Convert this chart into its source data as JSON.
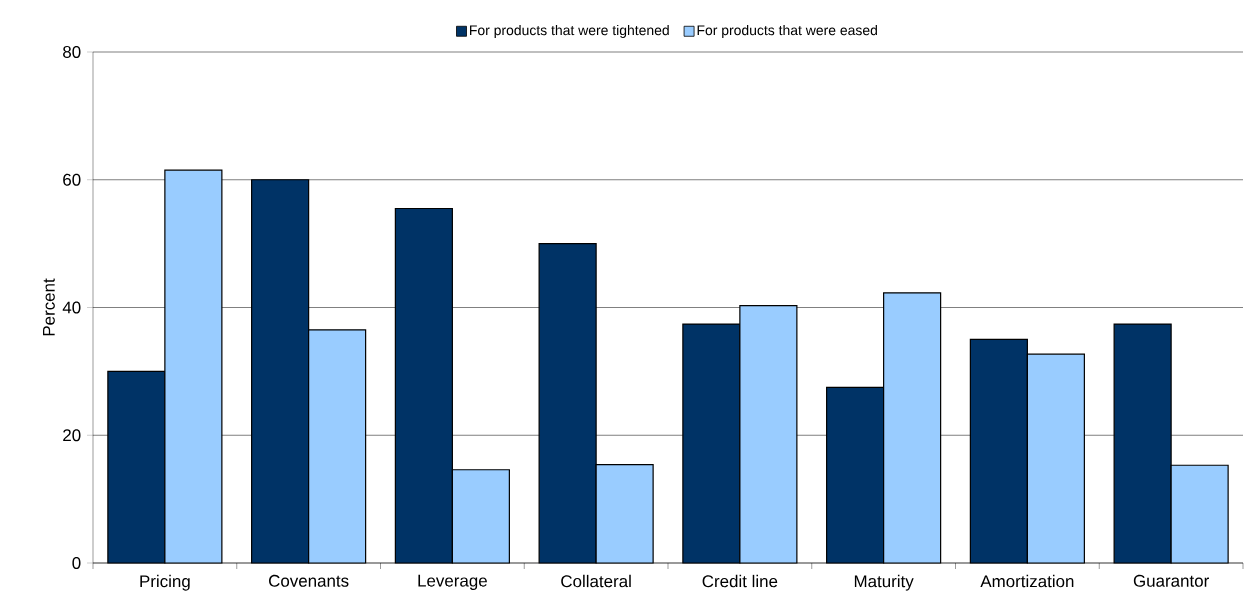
{
  "chart_data": {
    "type": "bar",
    "ylabel": "Percent",
    "categories": [
      "Pricing",
      "Covenants",
      "Leverage",
      "Collateral",
      "Credit line",
      "Maturity",
      "Amortization",
      "Guarantor"
    ],
    "series": [
      {
        "name": "For products that were tightened",
        "color": "#003366",
        "values": [
          30,
          60,
          55.5,
          50,
          37.4,
          27.5,
          35,
          37.4
        ]
      },
      {
        "name": "For products that were eased",
        "color": "#99ccff",
        "values": [
          61.5,
          36.5,
          14.6,
          15.4,
          40.3,
          42.3,
          32.7,
          15.3
        ]
      }
    ],
    "ylim": [
      0,
      80
    ],
    "yticks": [
      0,
      20,
      40,
      60,
      80
    ],
    "grid": "y",
    "legend": "top"
  }
}
